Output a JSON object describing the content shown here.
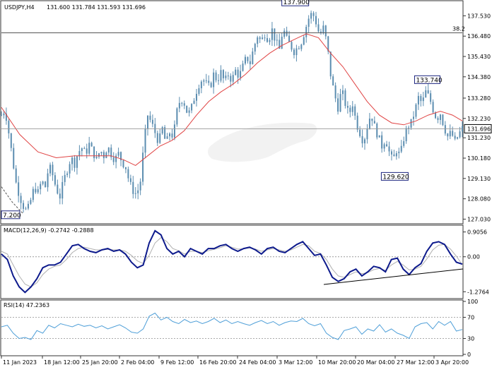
{
  "header": {
    "symbol": "USDJPY,H4",
    "ohlc": "131.600 131.784 131.593 131.696"
  },
  "macd": {
    "label": "MACD(12,26,9) -0.2742 -0.2888"
  },
  "rsi": {
    "label": "RSI(14) 47.2363"
  },
  "colors": {
    "candle": "#5b8db0",
    "ma": "#e04444",
    "macd": "#0d1a8c",
    "signal": "#b0b0b0",
    "rsi": "#4f9fd8",
    "frame": "#333333"
  },
  "chart_data": [
    {
      "type": "candlestick",
      "title": "USDJPY,H4",
      "y_ticks": [
        "137.530",
        "136.480",
        "135.430",
        "134.380",
        "133.280",
        "132.230",
        "131.230",
        "130.180",
        "129.130",
        "128.080",
        "127.030"
      ],
      "x_ticks": [
        "11 Jan 2023",
        "18 Jan 12:00",
        "25 Jan 20:00",
        "2 Feb 04:00",
        "9 Feb 12:00",
        "16 Feb 20:00",
        "24 Feb 04:00",
        "3 Mar 12:00",
        "10 Mar 20:00",
        "20 Mar 04:00",
        "27 Mar 12:00",
        "3 Apr 20:00"
      ],
      "ylim": [
        126.9,
        138.2
      ],
      "last_price": "131.696",
      "fib_level": {
        "label": "38.2",
        "price": 136.65
      },
      "annotations": [
        {
          "text": "137.900",
          "price": 137.9
        },
        {
          "text": "133.740",
          "price": 133.74
        },
        {
          "text": "129.620",
          "price": 129.62
        },
        {
          "text": "7.200",
          "price": 127.2
        }
      ],
      "close_path": [
        [
          0,
          132.4
        ],
        [
          3,
          132.7
        ],
        [
          6,
          131.5
        ],
        [
          9,
          130.2
        ],
        [
          12,
          128.9
        ],
        [
          15,
          128.2
        ],
        [
          18,
          127.7
        ],
        [
          21,
          127.4
        ],
        [
          24,
          128.0
        ],
        [
          27,
          128.7
        ],
        [
          30,
          128.4
        ],
        [
          33,
          129.0
        ],
        [
          36,
          128.7
        ],
        [
          39,
          129.8
        ],
        [
          42,
          129.3
        ],
        [
          45,
          128.6
        ],
        [
          48,
          128.2
        ],
        [
          51,
          129.0
        ],
        [
          54,
          129.6
        ],
        [
          57,
          130.2
        ],
        [
          60,
          129.9
        ],
        [
          63,
          130.5
        ],
        [
          66,
          130.7
        ],
        [
          69,
          130.4
        ],
        [
          72,
          130.9
        ],
        [
          75,
          130.5
        ],
        [
          78,
          130.1
        ],
        [
          81,
          130.6
        ],
        [
          84,
          130.3
        ],
        [
          87,
          130.8
        ],
        [
          90,
          130.4
        ],
        [
          93,
          130.1
        ],
        [
          96,
          130.4
        ],
        [
          99,
          130.0
        ],
        [
          102,
          129.7
        ],
        [
          105,
          128.9
        ],
        [
          108,
          128.5
        ],
        [
          111,
          128.3
        ],
        [
          114,
          129.0
        ],
        [
          117,
          131.0
        ],
        [
          120,
          132.4
        ],
        [
          123,
          132.0
        ],
        [
          126,
          131.5
        ],
        [
          129,
          131.0
        ],
        [
          132,
          131.7
        ],
        [
          135,
          130.9
        ],
        [
          138,
          131.5
        ],
        [
          141,
          131.3
        ],
        [
          144,
          132.6
        ],
        [
          147,
          133.3
        ],
        [
          150,
          133.0
        ],
        [
          153,
          132.4
        ],
        [
          156,
          132.8
        ],
        [
          159,
          133.5
        ],
        [
          162,
          134.0
        ],
        [
          165,
          134.3
        ],
        [
          168,
          134.0
        ],
        [
          171,
          133.8
        ],
        [
          174,
          134.5
        ],
        [
          177,
          134.2
        ],
        [
          180,
          134.6
        ],
        [
          183,
          134.1
        ],
        [
          186,
          134.5
        ],
        [
          189,
          134.2
        ],
        [
          192,
          134.7
        ],
        [
          195,
          134.4
        ],
        [
          198,
          134.9
        ],
        [
          201,
          135.4
        ],
        [
          204,
          135.1
        ],
        [
          207,
          135.9
        ],
        [
          210,
          136.5
        ],
        [
          213,
          136.2
        ],
        [
          216,
          136.6
        ],
        [
          219,
          136.3
        ],
        [
          222,
          136.8
        ],
        [
          225,
          136.2
        ],
        [
          228,
          135.8
        ],
        [
          231,
          136.9
        ],
        [
          234,
          136.3
        ],
        [
          237,
          136.0
        ],
        [
          240,
          135.7
        ],
        [
          243,
          135.9
        ],
        [
          246,
          136.2
        ],
        [
          249,
          136.8
        ],
        [
          252,
          137.4
        ],
        [
          255,
          137.7
        ],
        [
          258,
          137.2
        ],
        [
          261,
          136.5
        ],
        [
          264,
          136.9
        ],
        [
          267,
          136.1
        ],
        [
          270,
          134.5
        ],
        [
          273,
          133.5
        ],
        [
          276,
          132.8
        ],
        [
          279,
          133.7
        ],
        [
          282,
          133.0
        ],
        [
          285,
          132.4
        ],
        [
          288,
          133.0
        ],
        [
          291,
          132.0
        ],
        [
          294,
          131.5
        ],
        [
          297,
          131.0
        ],
        [
          300,
          131.8
        ],
        [
          303,
          132.5
        ],
        [
          306,
          131.8
        ],
        [
          309,
          131.3
        ],
        [
          312,
          130.8
        ],
        [
          315,
          131.2
        ],
        [
          318,
          130.5
        ],
        [
          321,
          130.0
        ],
        [
          324,
          130.6
        ],
        [
          327,
          130.3
        ],
        [
          330,
          131.2
        ],
        [
          333,
          131.8
        ],
        [
          336,
          132.0
        ],
        [
          339,
          132.6
        ],
        [
          342,
          133.3
        ],
        [
          345,
          133.0
        ],
        [
          348,
          133.6
        ],
        [
          351,
          133.3
        ],
        [
          354,
          132.7
        ],
        [
          357,
          132.2
        ],
        [
          360,
          132.5
        ],
        [
          363,
          131.8
        ],
        [
          366,
          131.3
        ],
        [
          369,
          131.5
        ],
        [
          372,
          131.0
        ],
        [
          375,
          131.4
        ],
        [
          378,
          131.696
        ]
      ],
      "ma_path": [
        [
          0,
          132.8
        ],
        [
          15,
          131.4
        ],
        [
          30,
          130.5
        ],
        [
          45,
          130.2
        ],
        [
          60,
          130.3
        ],
        [
          75,
          130.3
        ],
        [
          90,
          130.3
        ],
        [
          100,
          130.1
        ],
        [
          110,
          129.8
        ],
        [
          120,
          130.3
        ],
        [
          130,
          130.8
        ],
        [
          140,
          131.1
        ],
        [
          150,
          131.6
        ],
        [
          160,
          132.4
        ],
        [
          170,
          133.1
        ],
        [
          180,
          133.6
        ],
        [
          190,
          134.0
        ],
        [
          200,
          134.5
        ],
        [
          210,
          135.1
        ],
        [
          220,
          135.6
        ],
        [
          230,
          136.0
        ],
        [
          240,
          136.3
        ],
        [
          250,
          136.6
        ],
        [
          260,
          136.4
        ],
        [
          270,
          135.6
        ],
        [
          280,
          134.9
        ],
        [
          290,
          134.0
        ],
        [
          300,
          133.1
        ],
        [
          310,
          132.4
        ],
        [
          320,
          132.0
        ],
        [
          330,
          131.9
        ],
        [
          340,
          132.1
        ],
        [
          350,
          132.4
        ],
        [
          360,
          132.6
        ],
        [
          370,
          132.4
        ],
        [
          378,
          132.1
        ]
      ]
    },
    {
      "type": "line",
      "title": "MACD(12,26,9)",
      "y_ticks": [
        "0.9056",
        "0.00",
        "-1.2764"
      ],
      "ylim": [
        -1.45,
        1.05
      ],
      "series": [
        {
          "name": "MACD",
          "values": [
            0.1,
            -0.1,
            -0.7,
            -1.1,
            -1.3,
            -1.1,
            -0.8,
            -0.4,
            -0.3,
            -0.3,
            -0.2,
            0.1,
            0.4,
            0.45,
            0.3,
            0.2,
            0.15,
            0.25,
            0.3,
            0.2,
            0.25,
            0.1,
            -0.2,
            -0.4,
            -0.3,
            0.5,
            0.95,
            0.8,
            0.3,
            0.1,
            0.2,
            0.0,
            0.3,
            0.2,
            0.1,
            0.3,
            0.3,
            0.4,
            0.45,
            0.3,
            0.2,
            0.3,
            0.35,
            0.25,
            0.1,
            0.3,
            0.35,
            0.2,
            0.15,
            0.3,
            0.45,
            0.55,
            0.3,
            0.05,
            0.1,
            -0.3,
            -0.75,
            -0.9,
            -0.8,
            -0.55,
            -0.45,
            -0.7,
            -0.55,
            -0.35,
            -0.4,
            -0.55,
            -0.1,
            -0.05,
            -0.45,
            -0.65,
            -0.4,
            -0.25,
            0.2,
            0.5,
            0.55,
            0.45,
            0.1,
            -0.2,
            -0.27
          ]
        },
        {
          "name": "Signal",
          "values": [
            0.2,
            0.1,
            -0.3,
            -0.7,
            -1.0,
            -1.1,
            -0.95,
            -0.65,
            -0.45,
            -0.35,
            -0.3,
            -0.1,
            0.15,
            0.3,
            0.35,
            0.3,
            0.25,
            0.25,
            0.27,
            0.25,
            0.25,
            0.2,
            0.05,
            -0.15,
            -0.25,
            0.05,
            0.5,
            0.7,
            0.55,
            0.3,
            0.22,
            0.1,
            0.2,
            0.2,
            0.15,
            0.22,
            0.27,
            0.33,
            0.4,
            0.35,
            0.28,
            0.29,
            0.32,
            0.28,
            0.2,
            0.25,
            0.3,
            0.25,
            0.2,
            0.25,
            0.35,
            0.45,
            0.4,
            0.2,
            0.12,
            -0.1,
            -0.45,
            -0.7,
            -0.75,
            -0.65,
            -0.55,
            -0.62,
            -0.58,
            -0.47,
            -0.43,
            -0.5,
            -0.3,
            -0.17,
            -0.3,
            -0.48,
            -0.45,
            -0.35,
            -0.08,
            0.25,
            0.42,
            0.45,
            0.28,
            0.02,
            -0.29
          ]
        }
      ]
    },
    {
      "type": "line",
      "title": "RSI(14)",
      "y_ticks": [
        "100",
        "70",
        "30",
        "0"
      ],
      "ylim": [
        0,
        100
      ],
      "series": [
        {
          "name": "RSI",
          "values": [
            52,
            55,
            40,
            30,
            32,
            28,
            45,
            40,
            55,
            50,
            58,
            55,
            52,
            57,
            53,
            55,
            50,
            54,
            48,
            52,
            56,
            50,
            42,
            40,
            48,
            72,
            78,
            65,
            70,
            62,
            58,
            66,
            60,
            63,
            58,
            62,
            68,
            60,
            65,
            58,
            62,
            58,
            55,
            60,
            64,
            58,
            62,
            55,
            60,
            63,
            62,
            68,
            58,
            54,
            58,
            40,
            32,
            28,
            45,
            48,
            52,
            38,
            48,
            44,
            56,
            42,
            48,
            40,
            36,
            30,
            52,
            58,
            60,
            48,
            62,
            55,
            62,
            44,
            47
          ]
        }
      ]
    }
  ]
}
